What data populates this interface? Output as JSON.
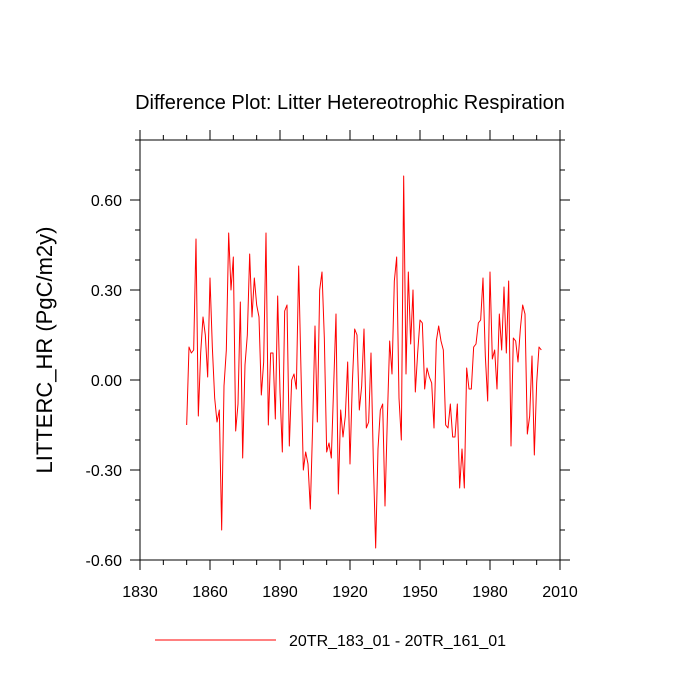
{
  "chart_data": {
    "type": "line",
    "title": "Difference Plot: Litter Hetereotrophic Respiration",
    "xlabel": "",
    "ylabel": "LITTERC_HR  (PgC/m2y)",
    "xlim": [
      1830,
      2010
    ],
    "ylim": [
      -0.6,
      0.8
    ],
    "xticks": [
      1830,
      1860,
      1890,
      1920,
      1950,
      1980,
      2010
    ],
    "xtick_labels": [
      "1830",
      "1860",
      "1890",
      "1920",
      "1950",
      "1980",
      "2010"
    ],
    "yticks": [
      -0.6,
      -0.3,
      0.0,
      0.3,
      0.6
    ],
    "ytick_labels": [
      "-0.60",
      "-0.30",
      "0.00",
      "0.30",
      "0.60"
    ],
    "legend_position": "bottom-center",
    "series": [
      {
        "name": "20TR_183_01 - 20TR_161_01",
        "color": "#ff0000",
        "x_start": 1850,
        "x_step": 1,
        "values": [
          -0.15,
          0.11,
          0.09,
          0.1,
          0.47,
          -0.12,
          0.09,
          0.21,
          0.15,
          0.01,
          0.34,
          0.11,
          -0.06,
          -0.14,
          -0.1,
          -0.5,
          -0.02,
          0.1,
          0.49,
          0.3,
          0.41,
          -0.17,
          -0.08,
          0.26,
          -0.26,
          0.05,
          0.15,
          0.42,
          0.21,
          0.34,
          0.25,
          0.21,
          -0.05,
          0.06,
          0.49,
          -0.15,
          0.09,
          0.09,
          -0.13,
          0.28,
          -0.04,
          -0.24,
          0.23,
          0.25,
          -0.22,
          0.0,
          0.02,
          -0.03,
          0.38,
          0.03,
          -0.3,
          -0.24,
          -0.28,
          -0.43,
          -0.15,
          0.18,
          -0.14,
          0.3,
          0.36,
          0.14,
          -0.24,
          -0.21,
          -0.26,
          -0.02,
          0.22,
          -0.38,
          -0.1,
          -0.19,
          -0.12,
          0.06,
          -0.28,
          -0.01,
          0.17,
          0.15,
          -0.1,
          -0.02,
          0.17,
          -0.16,
          -0.14,
          0.09,
          -0.27,
          -0.56,
          -0.23,
          -0.1,
          -0.08,
          -0.42,
          -0.13,
          0.13,
          0.02,
          0.33,
          0.41,
          -0.06,
          -0.2,
          0.68,
          0.02,
          0.36,
          0.12,
          0.3,
          -0.04,
          0.09,
          0.2,
          0.19,
          -0.03,
          0.04,
          0.01,
          -0.01,
          -0.16,
          0.13,
          0.18,
          0.13,
          0.1,
          -0.15,
          -0.16,
          -0.08,
          -0.19,
          -0.19,
          -0.08,
          -0.36,
          -0.23,
          -0.36,
          0.04,
          -0.03,
          -0.03,
          0.11,
          0.12,
          0.19,
          0.2,
          0.34,
          0.08,
          -0.07,
          0.36,
          0.07,
          0.1,
          -0.03,
          0.22,
          0.1,
          0.31,
          0.09,
          0.33,
          -0.22,
          0.14,
          0.13,
          0.06,
          0.17,
          0.25,
          0.22,
          -0.18,
          -0.12,
          0.08,
          -0.25,
          -0.01,
          0.11,
          0.1
        ]
      }
    ]
  }
}
